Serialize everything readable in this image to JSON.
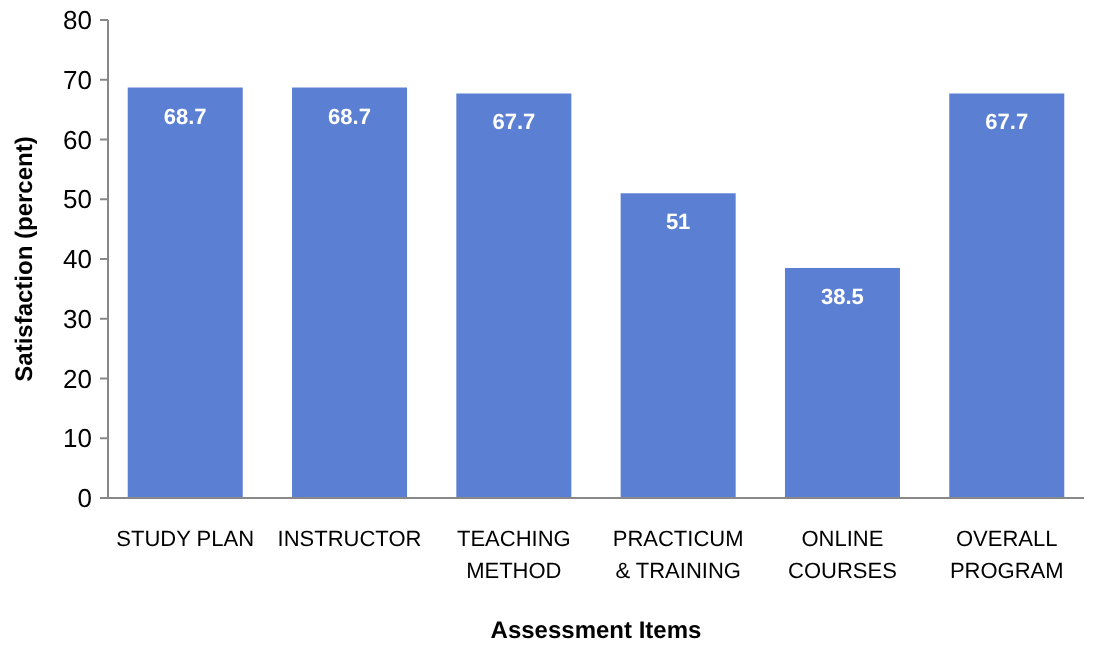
{
  "chart_data": {
    "type": "bar",
    "xlabel": "Assessment Items",
    "ylabel": "Satisfaction (percent)",
    "categories": [
      "STUDY PLAN",
      "INSTRUCTOR",
      "TEACHING\nMETHOD",
      "PRACTICUM\n& TRAINING",
      "ONLINE\nCOURSES",
      "OVERALL\nPROGRAM"
    ],
    "values": [
      68.7,
      68.7,
      67.7,
      51,
      38.5,
      67.7
    ],
    "color": "#5b7fd3",
    "ylim": [
      0,
      80
    ],
    "yticks": [
      0,
      10,
      20,
      30,
      40,
      50,
      60,
      70,
      80
    ],
    "data_labels": true,
    "grid": false
  }
}
